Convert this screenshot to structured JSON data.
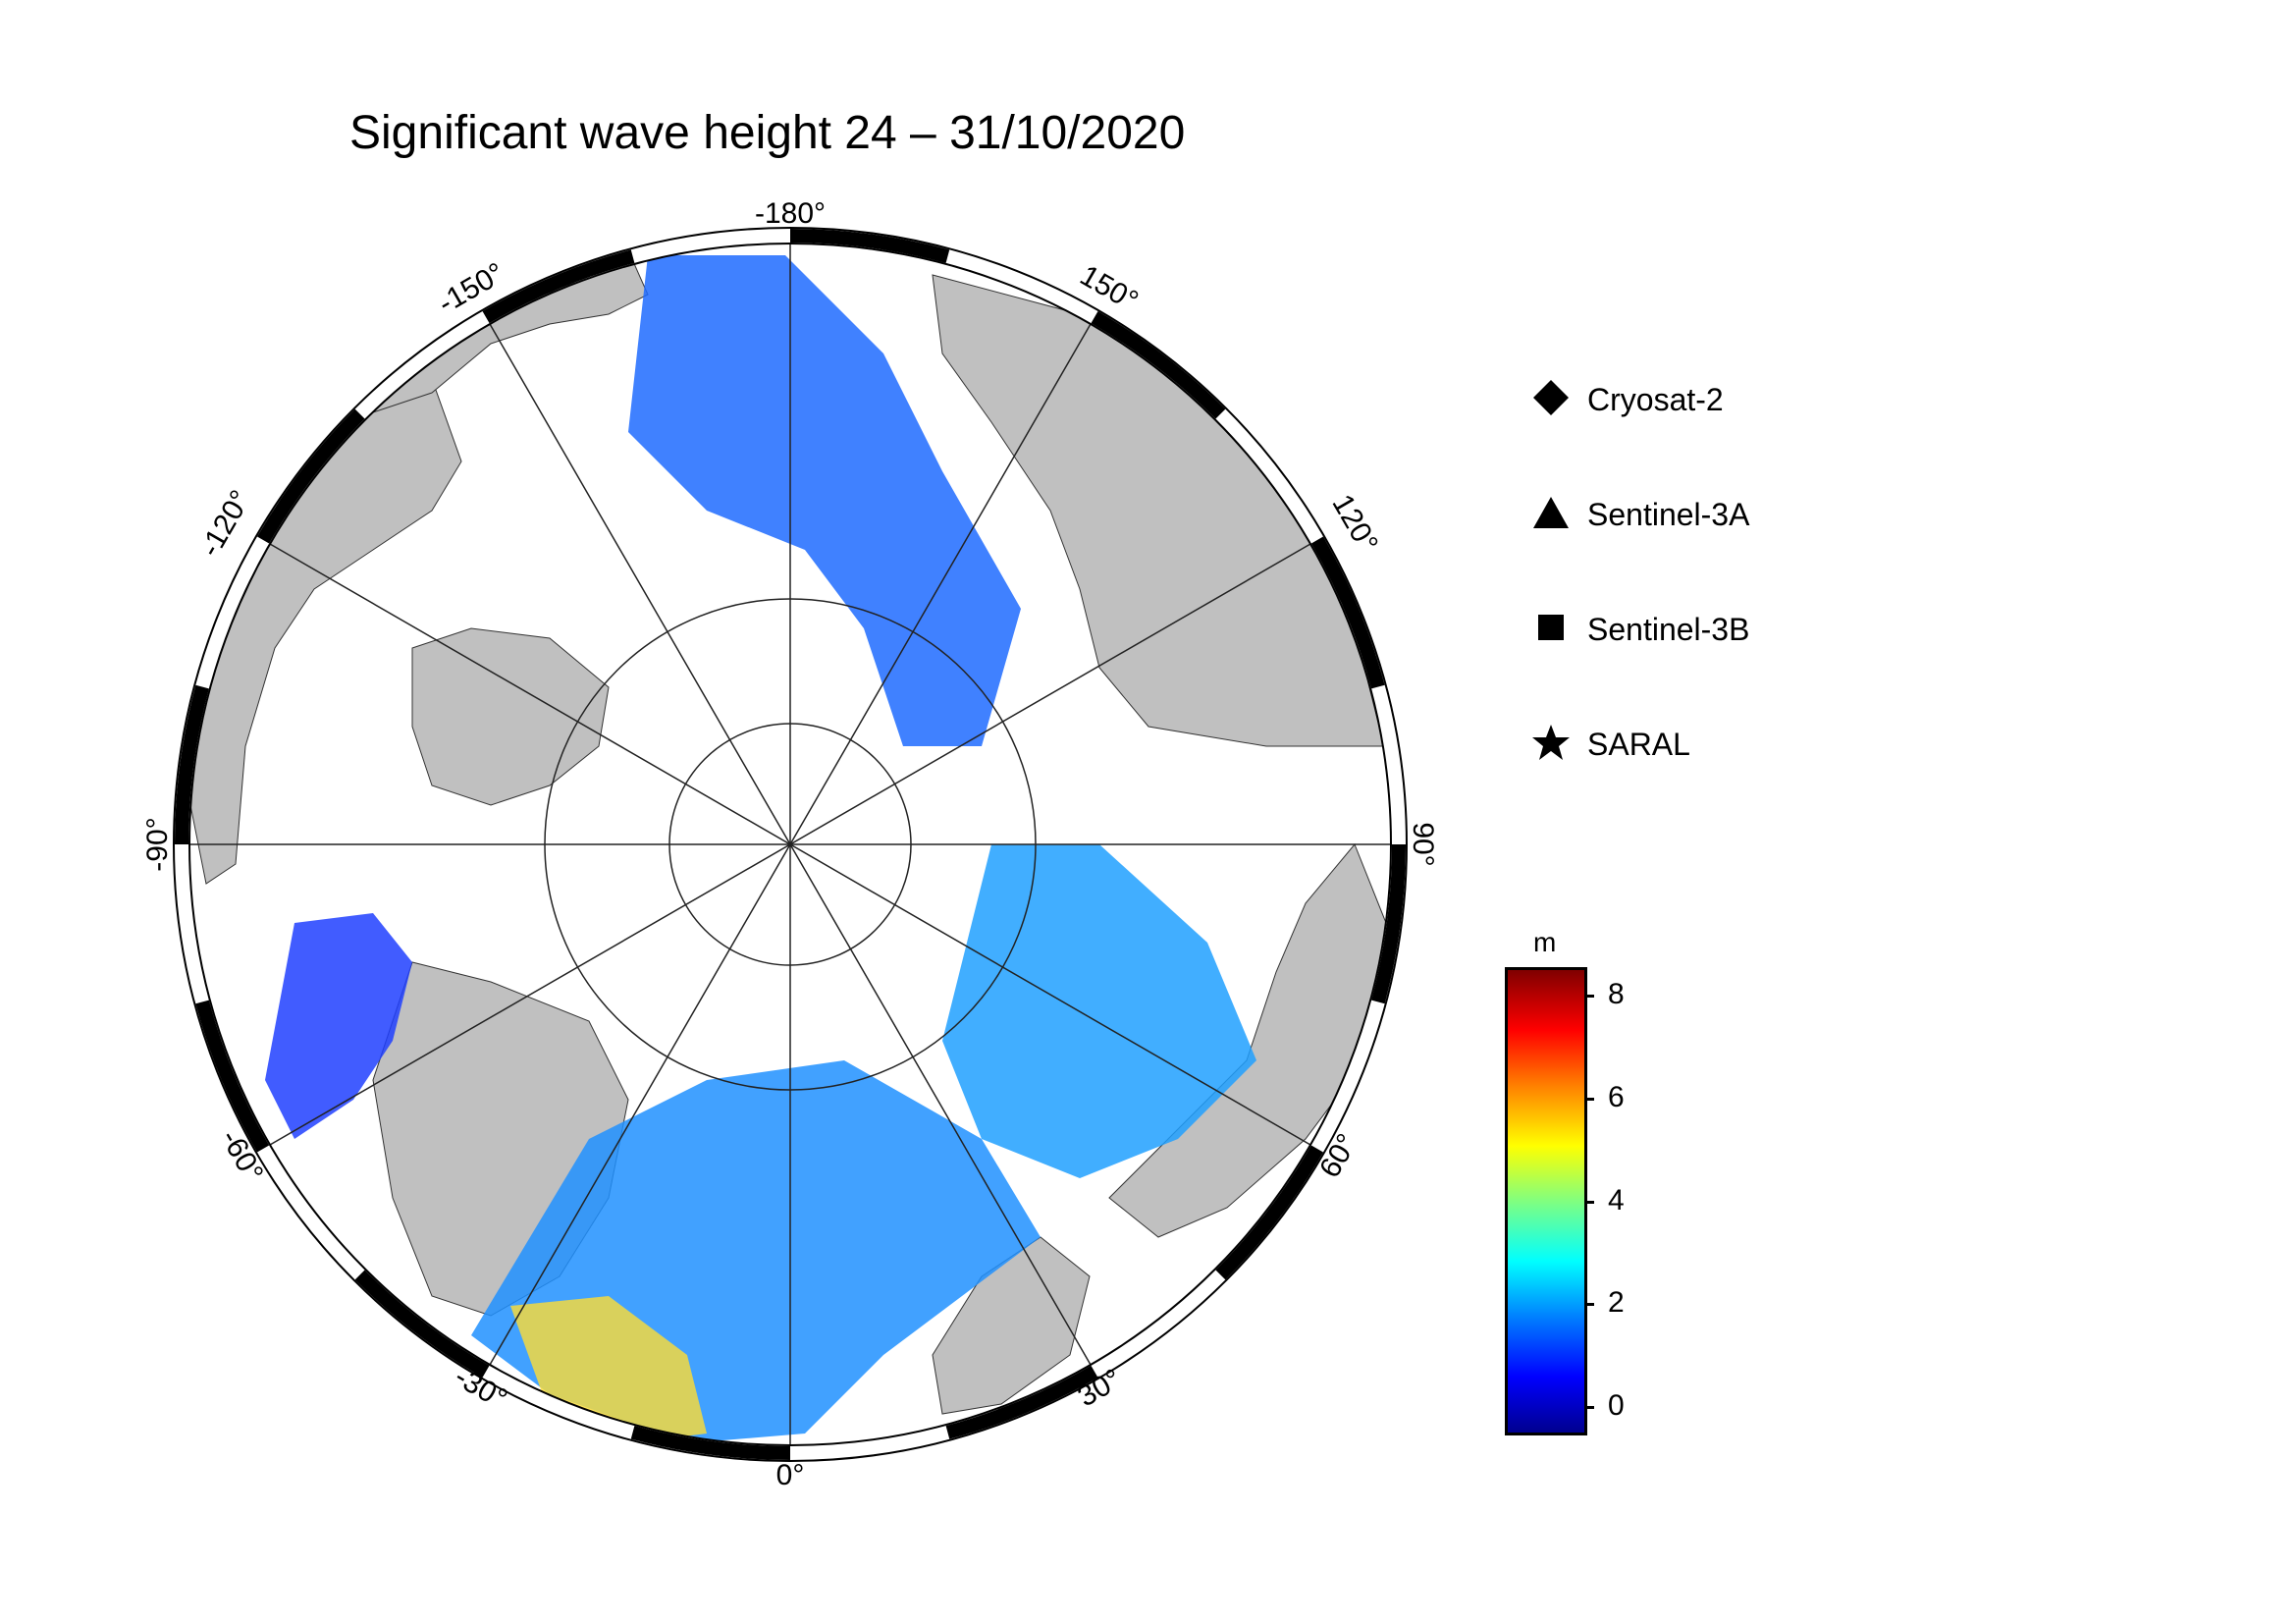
{
  "title": "Significant wave height 24 – 31/10/2020",
  "map": {
    "projection": "north-polar-stereographic",
    "colors": {
      "land": "#c0c0c0",
      "sea_ice": "#ffffff",
      "frame": "#000000"
    },
    "longitude_labels": [
      "-180°",
      "150°",
      "120°",
      "90°",
      "60°",
      "30°",
      "0°",
      "-30°",
      "-60°",
      "-90°",
      "-120°",
      "-150°"
    ]
  },
  "legend": {
    "items": [
      {
        "marker": "diamond",
        "label": "Cryosat-2"
      },
      {
        "marker": "triangle",
        "label": "Sentinel-3A"
      },
      {
        "marker": "square",
        "label": "Sentinel-3B"
      },
      {
        "marker": "star",
        "label": "SARAL"
      }
    ]
  },
  "colorbar": {
    "unit": "m",
    "min": -0.5,
    "max": 8.5,
    "ticks": [
      "0",
      "2",
      "4",
      "6",
      "8"
    ],
    "colormap": "jet"
  }
}
